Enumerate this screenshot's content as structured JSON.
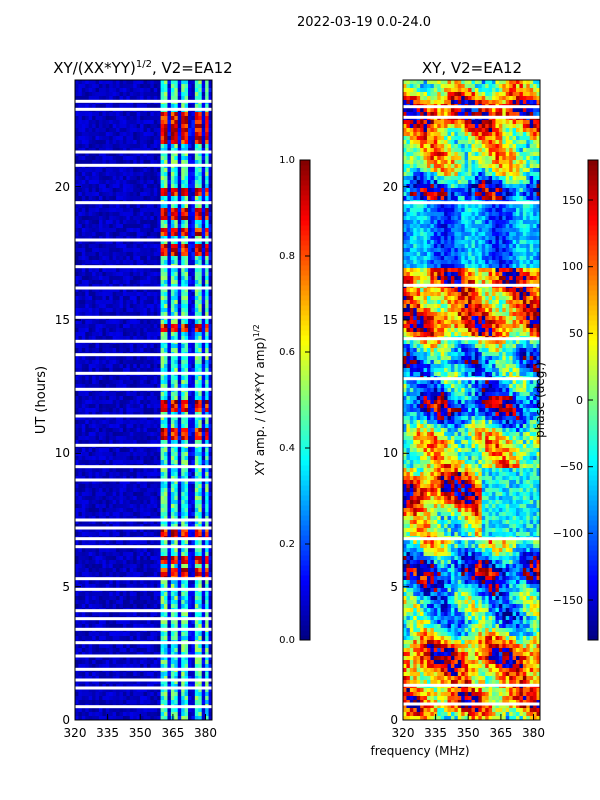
{
  "figure": {
    "suptitle": "2022-03-19 0.0-24.0",
    "shared_xlabel": "frequency (MHz)"
  },
  "colors": {
    "jet": [
      "#00007f",
      "#0000ff",
      "#007fff",
      "#00ffff",
      "#7fff7f",
      "#ffff00",
      "#ff7f00",
      "#ff0000",
      "#7f0000"
    ],
    "gap": "#ffffff"
  },
  "chart_data": [
    {
      "type": "heatmap",
      "title_text": "XY/(XX*YY)",
      "title_sup": "1/2",
      "title_suffix": ", V2=EA12",
      "ylabel": "UT (hours)",
      "xlim": [
        320,
        383
      ],
      "ylim": [
        0,
        24
      ],
      "xticks": [
        320,
        335,
        350,
        365,
        380
      ],
      "yticks": [
        0,
        5,
        10,
        15,
        20
      ],
      "colorbar": {
        "label_text": "XY amp. / (XX*YY amp)",
        "label_sup": "1/2",
        "range": [
          0,
          1
        ],
        "ticks": [
          "0.0",
          "0.2",
          "0.4",
          "0.6",
          "0.8",
          "1.0"
        ],
        "tick_values": [
          0,
          0.2,
          0.4,
          0.6,
          0.8,
          1.0
        ]
      },
      "high_band_mhz": [
        360,
        383
      ],
      "hot_hours": [
        5.5,
        6.0,
        7.0,
        10.7,
        11.8,
        14.7,
        17.6,
        18.3,
        19.0,
        19.8,
        21.8,
        22.2,
        22.6
      ],
      "gap_hours": [
        0.5,
        1.2,
        1.5,
        1.9,
        2.4,
        2.9,
        3.4,
        3.8,
        4.1,
        4.9,
        5.3,
        6.5,
        6.8,
        7.2,
        7.5,
        9.0,
        9.5,
        10.3,
        11.4,
        12.4,
        13.0,
        13.7,
        14.2,
        15.1,
        16.2,
        17.0,
        18.0,
        19.4,
        20.8,
        21.3,
        22.9,
        23.2
      ]
    },
    {
      "type": "heatmap",
      "title_text": "XY, V2=EA12",
      "xlim": [
        320,
        383
      ],
      "ylim": [
        0,
        24
      ],
      "xticks": [
        320,
        335,
        350,
        365,
        380
      ],
      "yticks": [
        0,
        5,
        10,
        15,
        20
      ],
      "colorbar": {
        "label_text": "phase (deg.)",
        "range": [
          -180,
          180
        ],
        "ticks": [
          "−150",
          "−100",
          "−50",
          "0",
          "50",
          "100",
          "150"
        ],
        "tick_values": [
          -150,
          -100,
          -50,
          0,
          50,
          100,
          150
        ]
      },
      "gap_hours": [
        0.6,
        1.3,
        6.8,
        12.8,
        14.3,
        16.3,
        19.4,
        22.6,
        23.0
      ]
    }
  ]
}
